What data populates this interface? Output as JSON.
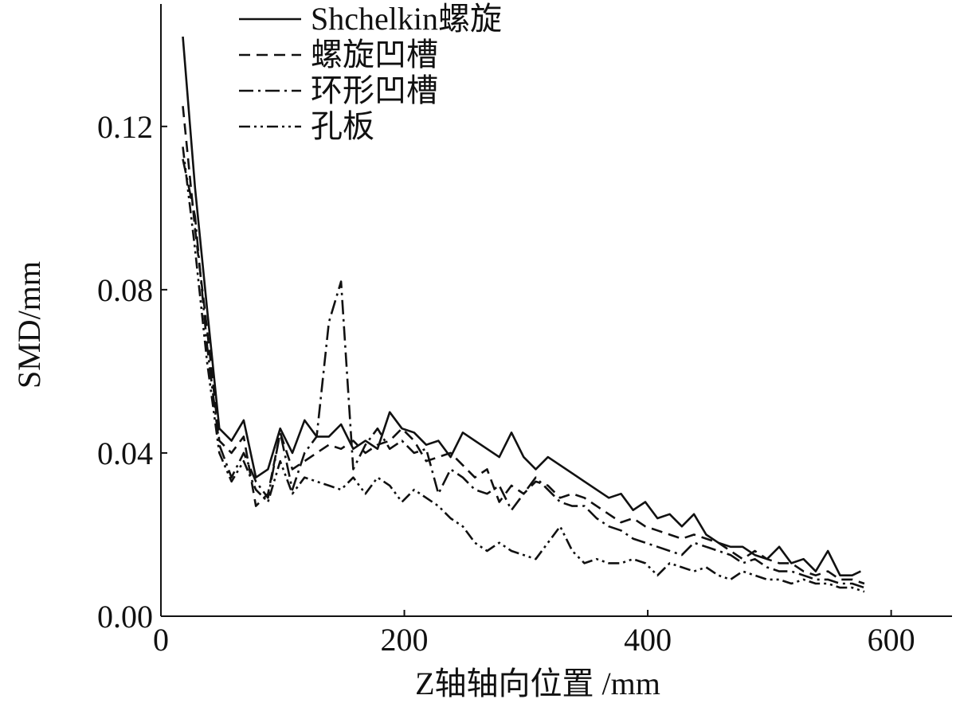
{
  "chart_data": {
    "type": "line",
    "xlabel": "Z轴轴向位置 /mm",
    "ylabel": "SMD/mm",
    "xlim": [
      0,
      650
    ],
    "ylim": [
      0,
      0.15
    ],
    "xticks": [
      0,
      200,
      400,
      600
    ],
    "xtick_labels": [
      "0",
      "200",
      "400",
      "600"
    ],
    "yticks": [
      0.0,
      0.04,
      0.08,
      0.12
    ],
    "ytick_labels": [
      "0.00",
      "0.04",
      "0.08",
      "0.12"
    ],
    "legend_position": "top-left",
    "series": [
      {
        "name": "Shchelkin螺旋",
        "dash": "",
        "x": [
          18,
          28,
          38,
          48,
          58,
          68,
          78,
          88,
          98,
          108,
          118,
          128,
          138,
          148,
          158,
          168,
          178,
          188,
          198,
          208,
          218,
          228,
          238,
          248,
          258,
          268,
          278,
          288,
          298,
          308,
          318,
          328,
          338,
          348,
          358,
          368,
          378,
          388,
          398,
          408,
          418,
          428,
          438,
          448,
          458,
          468,
          478,
          488,
          498,
          508,
          518,
          528,
          538,
          548,
          558,
          568,
          575
        ],
        "values": [
          0.142,
          0.105,
          0.075,
          0.046,
          0.043,
          0.048,
          0.034,
          0.036,
          0.046,
          0.04,
          0.048,
          0.044,
          0.044,
          0.047,
          0.041,
          0.043,
          0.041,
          0.05,
          0.046,
          0.045,
          0.042,
          0.043,
          0.039,
          0.045,
          0.043,
          0.041,
          0.039,
          0.045,
          0.039,
          0.036,
          0.039,
          0.037,
          0.035,
          0.033,
          0.031,
          0.029,
          0.03,
          0.026,
          0.028,
          0.024,
          0.025,
          0.022,
          0.025,
          0.02,
          0.018,
          0.017,
          0.017,
          0.015,
          0.014,
          0.017,
          0.013,
          0.014,
          0.011,
          0.016,
          0.01,
          0.01,
          0.011
        ]
      },
      {
        "name": "螺旋凹槽",
        "dash": "14 8",
        "x": [
          18,
          28,
          38,
          48,
          58,
          68,
          78,
          88,
          98,
          108,
          118,
          128,
          138,
          148,
          158,
          168,
          178,
          188,
          198,
          208,
          218,
          228,
          238,
          248,
          258,
          268,
          278,
          288,
          298,
          308,
          318,
          328,
          338,
          348,
          358,
          368,
          378,
          388,
          398,
          408,
          418,
          428,
          438,
          448,
          458,
          468,
          478,
          488,
          498,
          508,
          518,
          528,
          538,
          548,
          558,
          568,
          578
        ],
        "values": [
          0.125,
          0.095,
          0.07,
          0.043,
          0.04,
          0.044,
          0.027,
          0.03,
          0.045,
          0.036,
          0.038,
          0.04,
          0.042,
          0.041,
          0.043,
          0.04,
          0.042,
          0.043,
          0.046,
          0.043,
          0.038,
          0.039,
          0.04,
          0.037,
          0.034,
          0.036,
          0.028,
          0.032,
          0.03,
          0.033,
          0.032,
          0.029,
          0.03,
          0.029,
          0.027,
          0.025,
          0.023,
          0.024,
          0.022,
          0.021,
          0.02,
          0.019,
          0.02,
          0.019,
          0.018,
          0.016,
          0.014,
          0.016,
          0.014,
          0.013,
          0.013,
          0.011,
          0.01,
          0.011,
          0.009,
          0.009,
          0.008
        ]
      },
      {
        "name": "环形凹槽",
        "dash": "18 6 3 6",
        "x": [
          18,
          28,
          38,
          48,
          58,
          68,
          78,
          88,
          98,
          108,
          118,
          128,
          138,
          148,
          158,
          168,
          178,
          188,
          198,
          208,
          218,
          228,
          238,
          248,
          258,
          268,
          278,
          288,
          298,
          308,
          318,
          328,
          338,
          348,
          358,
          368,
          378,
          388,
          398,
          408,
          418,
          428,
          438,
          448,
          458,
          468,
          478,
          488,
          498,
          508,
          518,
          528,
          538,
          548,
          558,
          568,
          578
        ],
        "values": [
          0.112,
          0.098,
          0.066,
          0.042,
          0.034,
          0.04,
          0.033,
          0.029,
          0.045,
          0.031,
          0.04,
          0.044,
          0.072,
          0.082,
          0.036,
          0.042,
          0.046,
          0.041,
          0.043,
          0.04,
          0.041,
          0.03,
          0.036,
          0.034,
          0.031,
          0.03,
          0.032,
          0.026,
          0.03,
          0.034,
          0.031,
          0.028,
          0.027,
          0.027,
          0.024,
          0.022,
          0.021,
          0.019,
          0.018,
          0.017,
          0.016,
          0.015,
          0.018,
          0.017,
          0.016,
          0.015,
          0.013,
          0.014,
          0.012,
          0.011,
          0.011,
          0.01,
          0.009,
          0.009,
          0.008,
          0.008,
          0.007
        ]
      },
      {
        "name": "孔板",
        "dash": "14 5 3 5 3 5",
        "x": [
          18,
          28,
          38,
          48,
          58,
          68,
          78,
          88,
          98,
          108,
          118,
          128,
          138,
          148,
          158,
          168,
          178,
          188,
          198,
          208,
          218,
          228,
          238,
          248,
          258,
          268,
          278,
          288,
          298,
          308,
          318,
          328,
          338,
          348,
          358,
          368,
          378,
          388,
          398,
          408,
          418,
          428,
          438,
          448,
          458,
          468,
          478,
          488,
          498,
          508,
          518,
          528,
          538,
          548,
          558,
          568,
          578
        ],
        "values": [
          0.115,
          0.09,
          0.062,
          0.04,
          0.033,
          0.038,
          0.031,
          0.028,
          0.038,
          0.03,
          0.034,
          0.033,
          0.032,
          0.031,
          0.034,
          0.03,
          0.034,
          0.032,
          0.028,
          0.031,
          0.029,
          0.027,
          0.024,
          0.022,
          0.018,
          0.016,
          0.018,
          0.016,
          0.015,
          0.014,
          0.018,
          0.022,
          0.016,
          0.013,
          0.014,
          0.013,
          0.013,
          0.014,
          0.013,
          0.01,
          0.013,
          0.012,
          0.011,
          0.012,
          0.01,
          0.009,
          0.011,
          0.01,
          0.009,
          0.009,
          0.008,
          0.009,
          0.008,
          0.008,
          0.007,
          0.007,
          0.006
        ]
      }
    ]
  }
}
